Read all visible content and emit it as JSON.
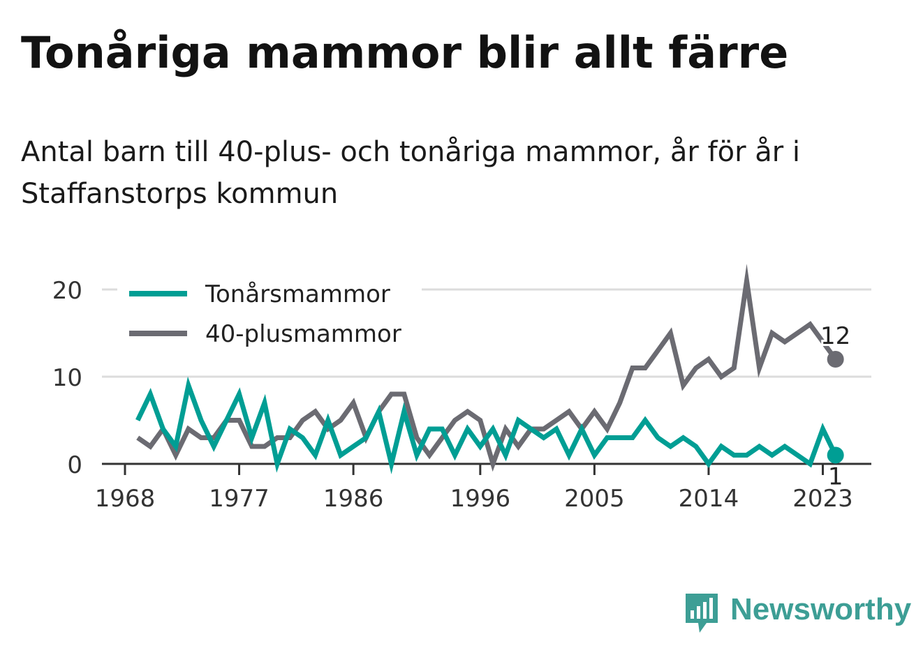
{
  "header": {
    "title": "Tonåriga mammor blir allt färre",
    "subtitle": "Antal barn till 40-plus- och tonåriga mammor, år för år i Staffanstorps kommun"
  },
  "brand": {
    "name": "Newsworthy",
    "icon": "bar-chart-speech-bubble-icon",
    "color": "#3d9e95"
  },
  "chart_data": {
    "type": "line",
    "title": "Tonåriga mammor blir allt färre",
    "subtitle": "Antal barn till 40-plus- och tonåriga mammor, år för år i Staffanstorps kommun",
    "xlabel": "",
    "ylabel": "",
    "xlim": [
      1968,
      2024
    ],
    "ylim": [
      0,
      21
    ],
    "x_ticks": [
      1968,
      1977,
      1986,
      1996,
      2005,
      2014,
      2023
    ],
    "y_ticks": [
      0,
      10,
      20
    ],
    "grid": "horizontal",
    "legend_position": "top-left",
    "x": [
      1969,
      1970,
      1971,
      1972,
      1973,
      1974,
      1975,
      1976,
      1977,
      1978,
      1979,
      1980,
      1981,
      1982,
      1983,
      1984,
      1985,
      1986,
      1987,
      1988,
      1989,
      1990,
      1991,
      1992,
      1993,
      1994,
      1995,
      1996,
      1997,
      1998,
      1999,
      2000,
      2001,
      2002,
      2003,
      2004,
      2005,
      2006,
      2007,
      2008,
      2009,
      2010,
      2011,
      2012,
      2013,
      2014,
      2015,
      2016,
      2017,
      2018,
      2019,
      2020,
      2021,
      2022,
      2023,
      2024
    ],
    "series": [
      {
        "name": "Tonårsmammor",
        "color": "#009e94",
        "values": [
          5,
          8,
          4,
          2,
          9,
          5,
          2,
          5,
          8,
          3,
          7,
          0,
          4,
          3,
          1,
          5,
          1,
          2,
          3,
          6,
          0,
          6,
          1,
          4,
          4,
          1,
          4,
          2,
          4,
          1,
          5,
          4,
          3,
          4,
          1,
          4,
          1,
          3,
          3,
          3,
          5,
          3,
          2,
          3,
          2,
          0,
          2,
          1,
          1,
          2,
          1,
          2,
          1,
          0,
          4,
          1
        ],
        "end_label": "1"
      },
      {
        "name": "40-plusmammor",
        "color": "#6b6b72",
        "values": [
          3,
          2,
          4,
          1,
          4,
          3,
          3,
          5,
          5,
          2,
          2,
          3,
          3,
          5,
          6,
          4,
          5,
          7,
          3,
          6,
          8,
          8,
          3,
          1,
          3,
          5,
          6,
          5,
          0,
          4,
          2,
          4,
          4,
          5,
          6,
          4,
          6,
          4,
          7,
          11,
          11,
          13,
          15,
          9,
          11,
          12,
          10,
          11,
          21,
          11,
          15,
          14,
          15,
          16,
          14,
          12
        ],
        "end_label": "12"
      }
    ]
  }
}
